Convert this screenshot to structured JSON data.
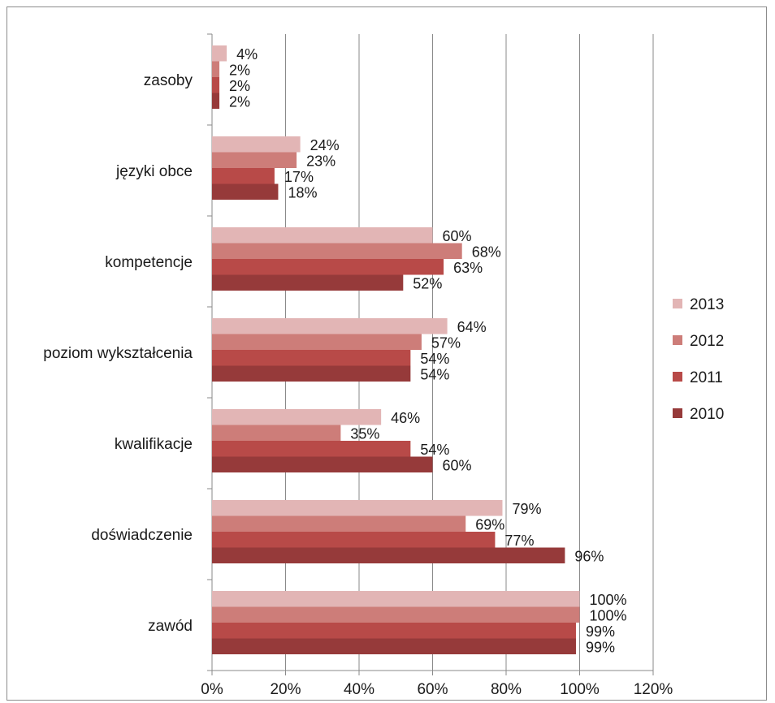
{
  "chart_data": {
    "type": "bar",
    "orientation": "horizontal",
    "categories": [
      "zasoby",
      "języki obce",
      "kompetencje",
      "poziom wykształcenia",
      "kwalifikacje",
      "doświadczenie",
      "zawód"
    ],
    "series": [
      {
        "name": "2013",
        "color": "#e2b5b5",
        "values": [
          4,
          24,
          60,
          64,
          46,
          79,
          100
        ]
      },
      {
        "name": "2012",
        "color": "#cd7d79",
        "values": [
          2,
          23,
          68,
          57,
          35,
          69,
          100
        ]
      },
      {
        "name": "2011",
        "color": "#b84a48",
        "values": [
          2,
          17,
          63,
          54,
          54,
          77,
          99
        ]
      },
      {
        "name": "2010",
        "color": "#963a3a",
        "values": [
          2,
          18,
          52,
          54,
          60,
          96,
          99
        ]
      }
    ],
    "xlim": [
      0,
      120
    ],
    "xticks": [
      0,
      20,
      40,
      60,
      80,
      100,
      120
    ],
    "value_format": "percent",
    "grid": "vertical",
    "legend": "right",
    "title": "",
    "xlabel": "",
    "ylabel": ""
  }
}
